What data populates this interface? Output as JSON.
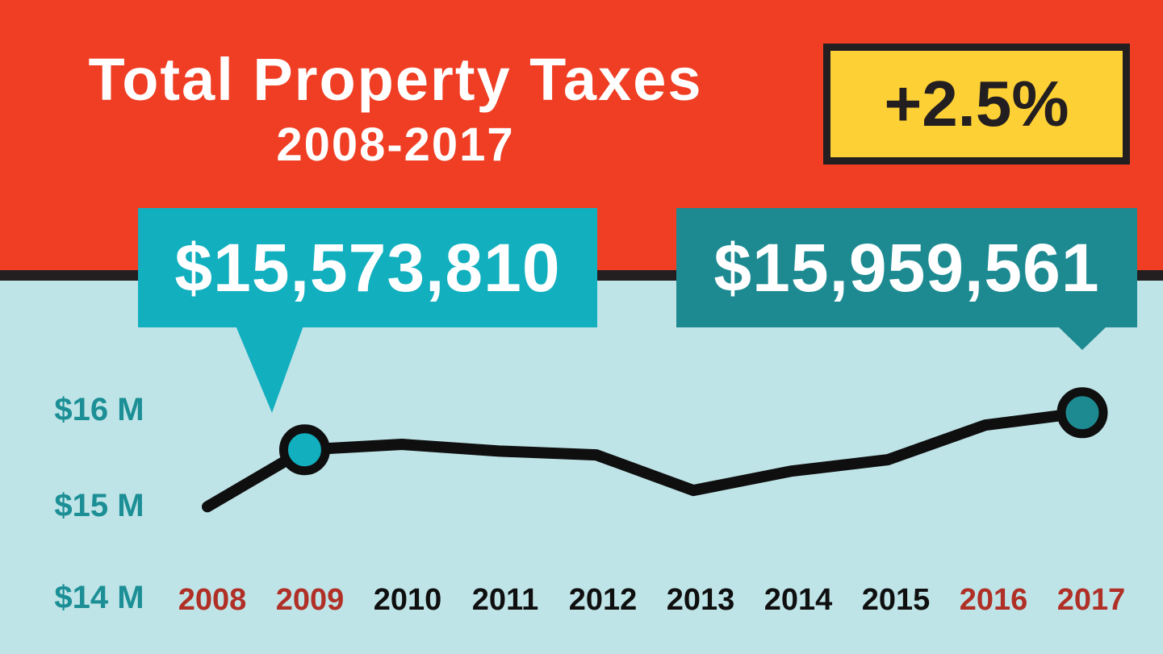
{
  "colors": {
    "header_bg": "#ef3e23",
    "plot_bg": "#bfe4e8",
    "divider": "#231f20",
    "badge_bg": "#fdd035",
    "callout_left": "#12afbf",
    "callout_right": "#1d8a91",
    "line": "#0f0f0f",
    "axis_label": "#1b8f95",
    "year_highlight": "#b02f26",
    "year_normal": "#0f0f0f"
  },
  "header": {
    "title": "Total Property Taxes",
    "subtitle": "2008-2017"
  },
  "badge": {
    "text": "+2.5%"
  },
  "callouts": {
    "left": "$15,573,810",
    "right": "$15,959,561"
  },
  "chart_data": {
    "type": "line",
    "x": [
      "2008",
      "2009",
      "2010",
      "2011",
      "2012",
      "2013",
      "2014",
      "2015",
      "2016",
      "2017"
    ],
    "highlighted_x": [
      "2008",
      "2009",
      "2016",
      "2017"
    ],
    "y_tick_labels": [
      "$16 M",
      "$15 M",
      "$14 M"
    ],
    "y_ticks": [
      16000000,
      15000000,
      14000000
    ],
    "series": [
      {
        "values": [
          14980000,
          15573810,
          15630000,
          15560000,
          15520000,
          15150000,
          15350000,
          15470000,
          15830000,
          15959561
        ]
      }
    ],
    "markers": [
      {
        "index": 1,
        "color": "#12afbf"
      },
      {
        "index": 9,
        "color": "#1d8a91"
      }
    ],
    "grid": false
  }
}
